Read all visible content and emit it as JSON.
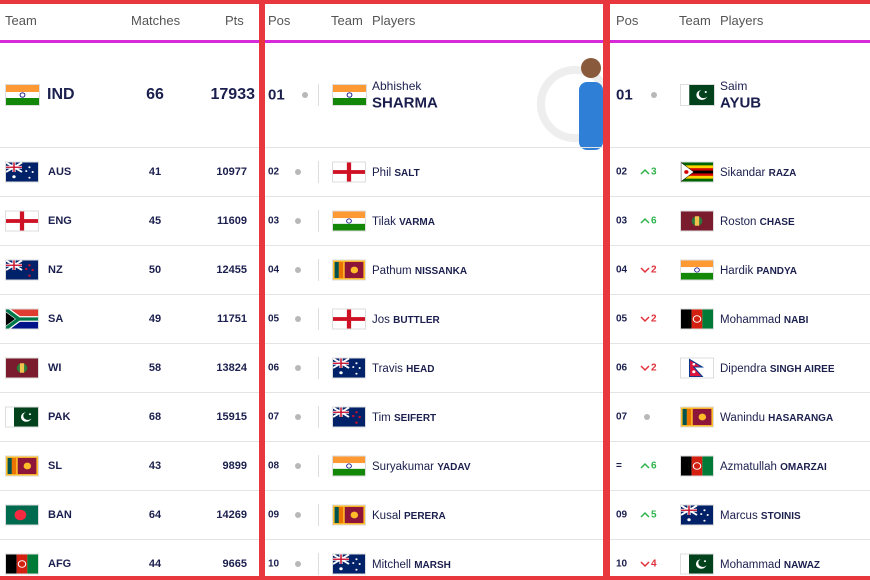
{
  "teams_table": {
    "headers": [
      "Team",
      "Matches",
      "Pts"
    ],
    "rows": [
      {
        "team": "IND",
        "matches": 66,
        "pts": 17933
      },
      {
        "team": "AUS",
        "matches": 41,
        "pts": 10977
      },
      {
        "team": "ENG",
        "matches": 45,
        "pts": 11609
      },
      {
        "team": "NZ",
        "matches": 50,
        "pts": 12455
      },
      {
        "team": "SA",
        "matches": 49,
        "pts": 11751
      },
      {
        "team": "WI",
        "matches": 58,
        "pts": 13824
      },
      {
        "team": "PAK",
        "matches": 68,
        "pts": 15915
      },
      {
        "team": "SL",
        "matches": 43,
        "pts": 9899
      },
      {
        "team": "BAN",
        "matches": 64,
        "pts": 14269
      },
      {
        "team": "AFG",
        "matches": 44,
        "pts": 9665
      }
    ]
  },
  "batting_table": {
    "headers": [
      "Pos",
      "Team",
      "Players"
    ],
    "rows": [
      {
        "pos": "01",
        "move": "same",
        "flag": "IND",
        "first": "Abhishek",
        "last": "SHARMA"
      },
      {
        "pos": "02",
        "move": "same",
        "flag": "ENG",
        "first": "Phil",
        "last": "SALT"
      },
      {
        "pos": "03",
        "move": "same",
        "flag": "IND",
        "first": "Tilak",
        "last": "VARMA"
      },
      {
        "pos": "04",
        "move": "same",
        "flag": "SL",
        "first": "Pathum",
        "last": "NISSANKA"
      },
      {
        "pos": "05",
        "move": "same",
        "flag": "ENG",
        "first": "Jos",
        "last": "BUTTLER"
      },
      {
        "pos": "06",
        "move": "same",
        "flag": "AUS",
        "first": "Travis",
        "last": "HEAD"
      },
      {
        "pos": "07",
        "move": "same",
        "flag": "NZ",
        "first": "Tim",
        "last": "SEIFERT"
      },
      {
        "pos": "08",
        "move": "same",
        "flag": "IND",
        "first": "Suryakumar",
        "last": "YADAV"
      },
      {
        "pos": "09",
        "move": "same",
        "flag": "SL",
        "first": "Kusal",
        "last": "PERERA"
      },
      {
        "pos": "10",
        "move": "same",
        "flag": "AUS",
        "first": "Mitchell",
        "last": "MARSH"
      }
    ]
  },
  "allrounder_table": {
    "headers": [
      "Pos",
      "Team",
      "Players"
    ],
    "rows": [
      {
        "pos": "01",
        "move": "same",
        "flag": "PAK",
        "first": "Saim",
        "last": "AYUB"
      },
      {
        "pos": "02",
        "move": "up",
        "change": "3",
        "flag": "ZIM",
        "first": "Sikandar",
        "last": "RAZA"
      },
      {
        "pos": "03",
        "move": "up",
        "change": "6",
        "flag": "WI",
        "first": "Roston",
        "last": "CHASE"
      },
      {
        "pos": "04",
        "move": "down",
        "change": "2",
        "flag": "IND",
        "first": "Hardik",
        "last": "PANDYA"
      },
      {
        "pos": "05",
        "move": "down",
        "change": "2",
        "flag": "AFG",
        "first": "Mohammad",
        "last": "NABI"
      },
      {
        "pos": "06",
        "move": "down",
        "change": "2",
        "flag": "NEP",
        "first": "Dipendra",
        "last": "SINGH AIREE"
      },
      {
        "pos": "07",
        "move": "same",
        "flag": "SL",
        "first": "Wanindu",
        "last": "HASARANGA"
      },
      {
        "pos": "=",
        "move": "up",
        "change": "6",
        "flag": "AFG",
        "first": "Azmatullah",
        "last": "OMARZAI"
      },
      {
        "pos": "09",
        "move": "up",
        "change": "5",
        "flag": "AUS",
        "first": "Marcus",
        "last": "STOINIS"
      },
      {
        "pos": "10",
        "move": "down",
        "change": "4",
        "flag": "PAK",
        "first": "Mohammad",
        "last": "NAWAZ"
      }
    ]
  }
}
